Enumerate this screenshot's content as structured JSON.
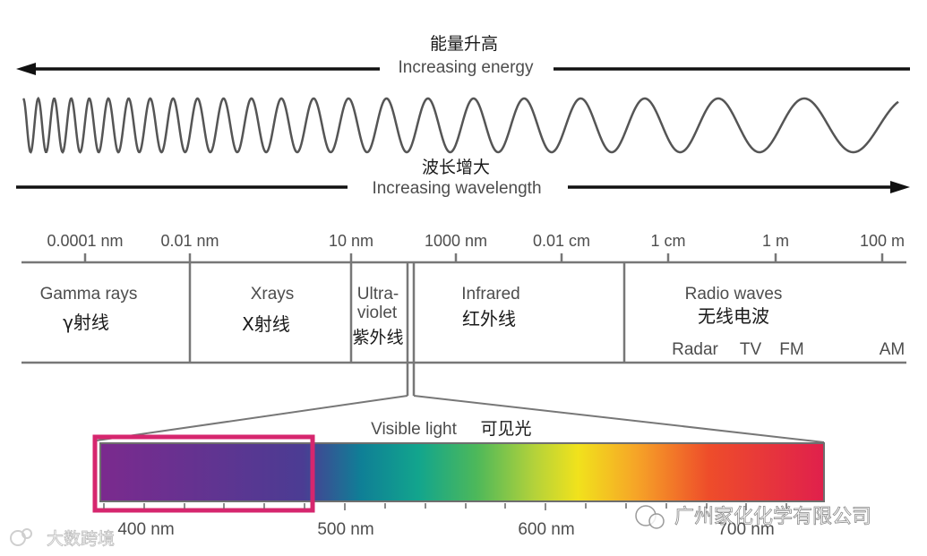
{
  "energy": {
    "label_cn": "能量升高",
    "label_en": "Increasing energy"
  },
  "wavelength": {
    "label_cn": "波长增大",
    "label_en": "Increasing wavelength"
  },
  "scale_ticks": [
    "0.0001 nm",
    "0.01 nm",
    "10 nm",
    "1000 nm",
    "0.01 cm",
    "1 cm",
    "1 m",
    "100 m"
  ],
  "bands": {
    "gamma": {
      "en": "Gamma rays",
      "cn": "γ射线"
    },
    "xray": {
      "en": "Xrays",
      "cn": "X射线"
    },
    "uv": {
      "en_line1": "Ultra-",
      "en_line2": "violet",
      "cn": "紫外线"
    },
    "infrared": {
      "en": "Infrared",
      "cn": "红外线"
    },
    "radio": {
      "en": "Radio waves",
      "cn": "无线电波",
      "sub": [
        "Radar",
        "TV",
        "FM",
        "AM"
      ]
    }
  },
  "visible": {
    "label_en": "Visible light",
    "label_cn": "可见光",
    "nm_labels": [
      "400 nm",
      "500 nm",
      "600 nm",
      "700 nm"
    ],
    "highlight_color": "#d6266e"
  },
  "watermarks": {
    "left": "大数跨境",
    "right": "广州家化化学有限公司"
  }
}
